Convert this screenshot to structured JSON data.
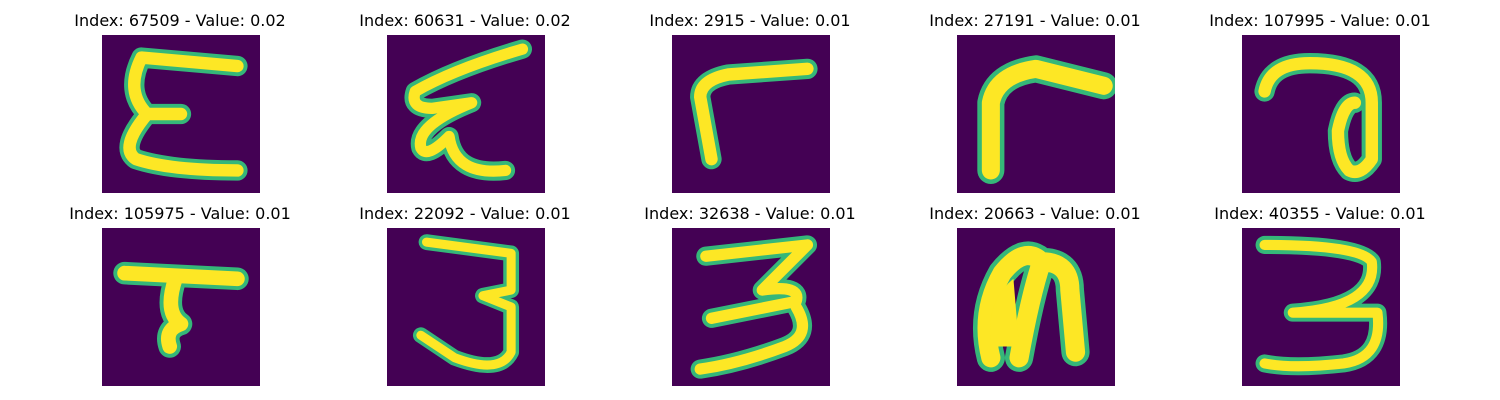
{
  "colors": {
    "background": "#440154",
    "stroke": "#fde725",
    "edge": "#35b779",
    "text": "#000000"
  },
  "grid": {
    "rows": 2,
    "cols": 5,
    "colormap": "viridis"
  },
  "panels": [
    {
      "index": "67509",
      "value": "0.02",
      "title": "Index: 67509 - Value: 0.02",
      "shape": "E"
    },
    {
      "index": "60631",
      "value": "0.02",
      "title": "Index: 60631 - Value: 0.02",
      "shape": "epsilon"
    },
    {
      "index": "2915",
      "value": "0.01",
      "title": "Index: 2915 - Value: 0.01",
      "shape": "L-rotated"
    },
    {
      "index": "27191",
      "value": "0.01",
      "title": "Index: 27191 - Value: 0.01",
      "shape": "r"
    },
    {
      "index": "107995",
      "value": "0.01",
      "title": "Index: 107995 - Value: 0.01",
      "shape": "a"
    },
    {
      "index": "105975",
      "value": "0.01",
      "title": "Index: 105975 - Value: 0.01",
      "shape": "7"
    },
    {
      "index": "22092",
      "value": "0.01",
      "title": "Index: 22092 - Value: 0.01",
      "shape": "3"
    },
    {
      "index": "32638",
      "value": "0.01",
      "title": "Index: 32638 - Value: 0.01",
      "shape": "3"
    },
    {
      "index": "20663",
      "value": "0.01",
      "title": "Index: 20663 - Value: 0.01",
      "shape": "n"
    },
    {
      "index": "40355",
      "value": "0.01",
      "title": "Index: 40355 - Value: 0.01",
      "shape": "3"
    }
  ]
}
